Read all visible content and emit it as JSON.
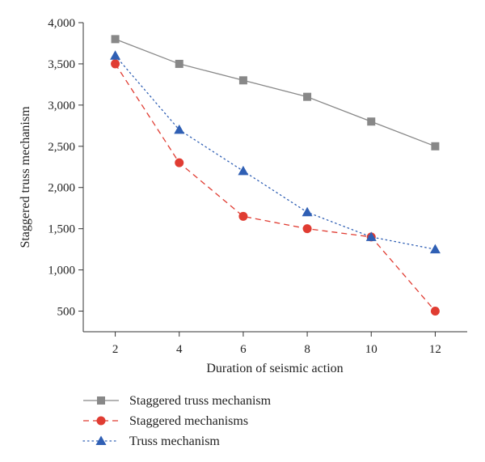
{
  "chart_data": {
    "type": "line",
    "title": "",
    "xlabel": "Duration of seismic action",
    "ylabel": "Staggered truss mechanism",
    "x": [
      2,
      4,
      6,
      8,
      10,
      12
    ],
    "x_ticks": [
      "2",
      "4",
      "6",
      "8",
      "10",
      "12"
    ],
    "y_ticks": [
      "500",
      "1,000",
      "1,500",
      "2,000",
      "2,500",
      "3,000",
      "3,500",
      "4,000"
    ],
    "y_tick_values": [
      500,
      1000,
      1500,
      2000,
      2500,
      3000,
      3500,
      4000
    ],
    "xlim": [
      1,
      13
    ],
    "ylim": [
      250,
      4000
    ],
    "grid": false,
    "legend_position": "bottom",
    "series": [
      {
        "name": "Staggered truss mechanism",
        "values": [
          3800,
          3500,
          3300,
          3100,
          2800,
          2500
        ],
        "color": "#888888",
        "marker": "square",
        "line": "solid"
      },
      {
        "name": "Staggered mechanisms",
        "values": [
          3500,
          2300,
          1650,
          1500,
          1400,
          500
        ],
        "color": "#e03c32",
        "marker": "circle",
        "line": "dashed"
      },
      {
        "name": "Truss mechanism",
        "values": [
          3600,
          2700,
          2200,
          1700,
          1400,
          1250
        ],
        "color": "#2f5fb4",
        "marker": "triangle",
        "line": "dotted"
      }
    ]
  }
}
